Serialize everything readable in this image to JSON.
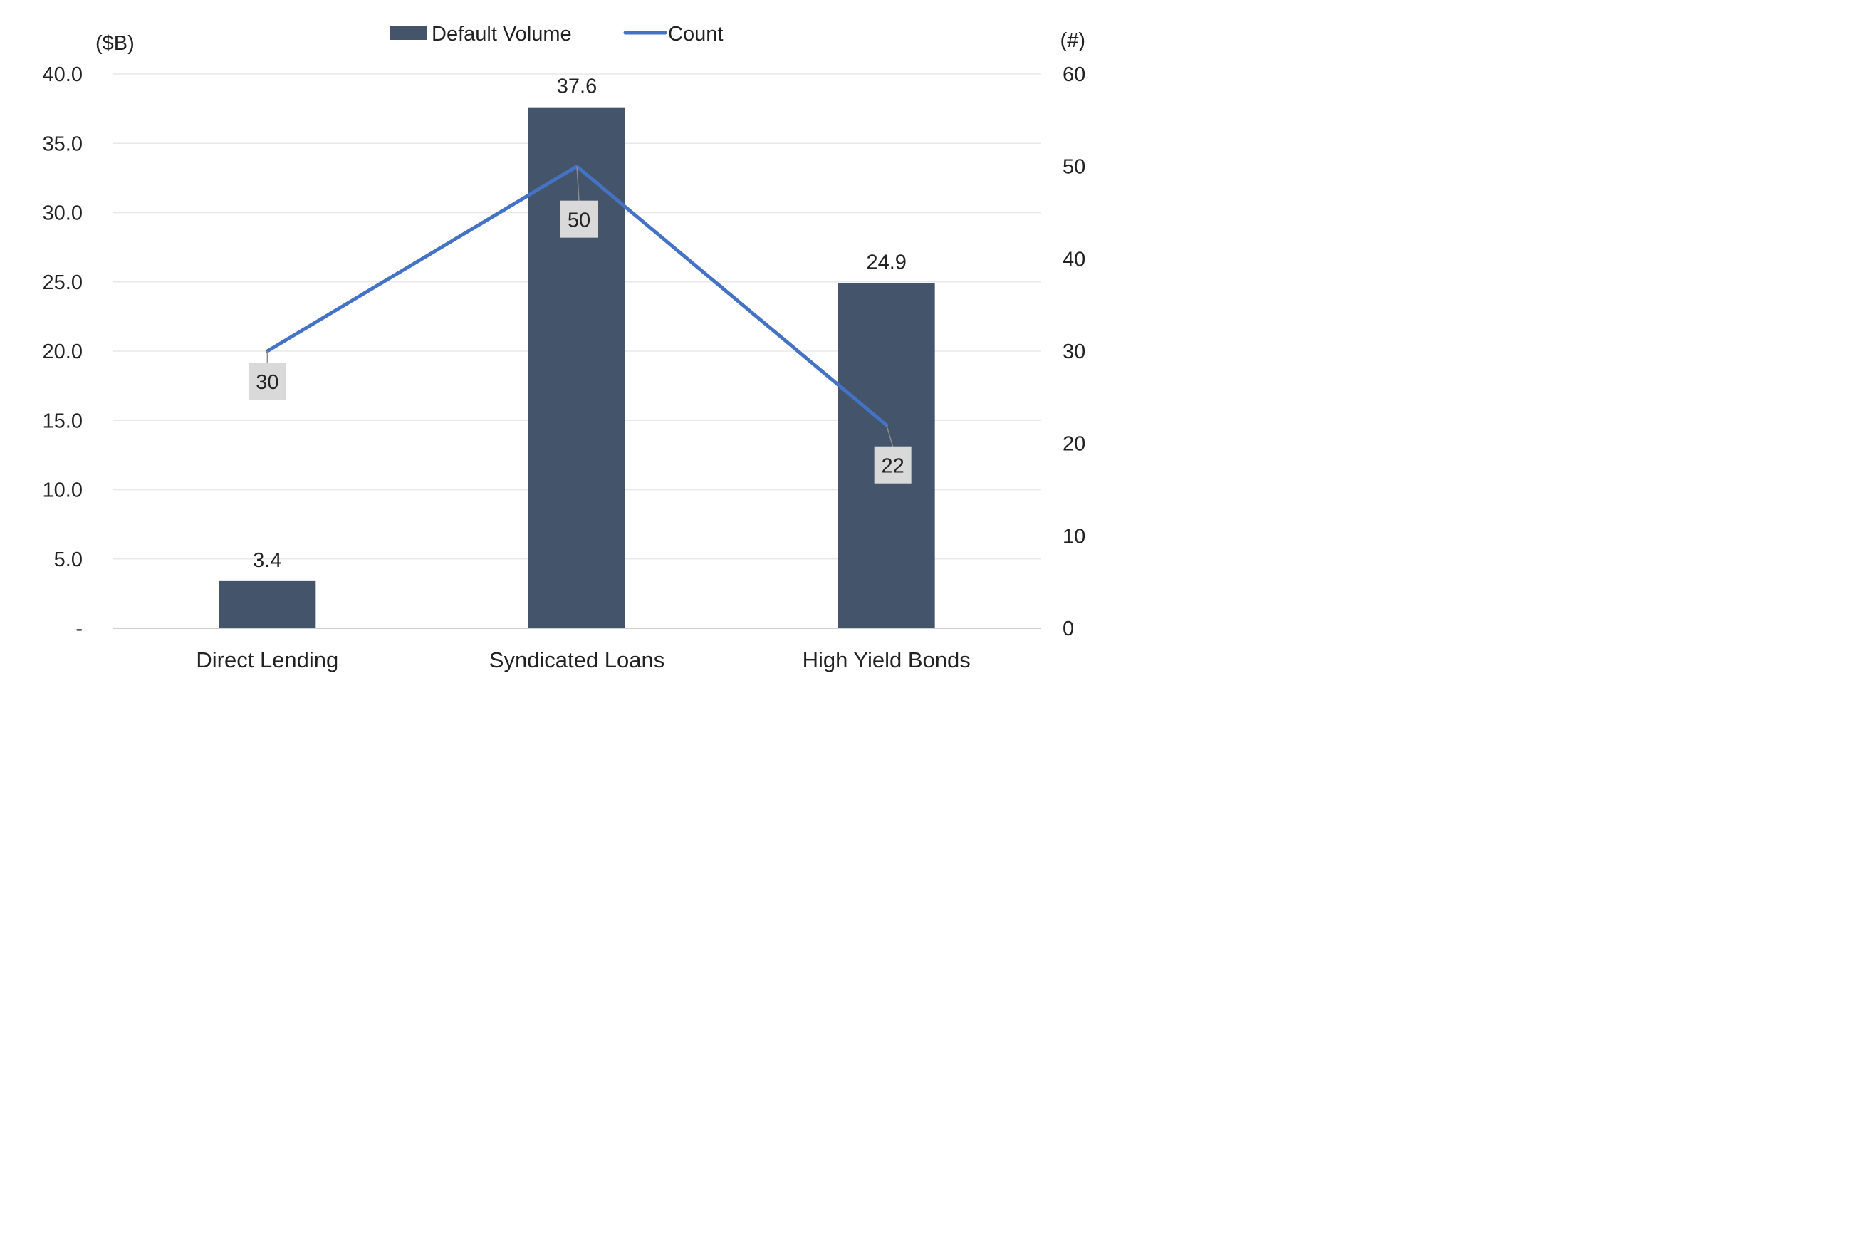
{
  "chart_data": {
    "type": "bar",
    "categories": [
      "Direct Lending",
      "Syndicated Loans",
      "High Yield Bonds"
    ],
    "series": [
      {
        "name": "Default Volume",
        "type": "bar",
        "axis": "left",
        "values": [
          3.4,
          37.6,
          24.9
        ],
        "labels": [
          "3.4",
          "37.6",
          "24.9"
        ],
        "color": "#44546a"
      },
      {
        "name": "Count",
        "type": "line",
        "axis": "right",
        "values": [
          30,
          50,
          22
        ],
        "labels": [
          "30",
          "50",
          "22"
        ],
        "color": "#4472c4"
      }
    ],
    "y_left": {
      "unit_label": "($B)",
      "range": [
        0,
        40
      ],
      "ticks": [
        0,
        5,
        10,
        15,
        20,
        25,
        30,
        35,
        40
      ],
      "tick_labels": [
        "-",
        "5.0",
        "10.0",
        "15.0",
        "20.0",
        "25.0",
        "30.0",
        "35.0",
        "40.0"
      ]
    },
    "y_right": {
      "unit_label": "(#)",
      "range": [
        0,
        60
      ],
      "ticks": [
        0,
        10,
        20,
        30,
        40,
        50,
        60
      ],
      "tick_labels": [
        "0",
        "10",
        "20",
        "30",
        "40",
        "50",
        "60"
      ]
    },
    "grid": true,
    "legend_position": "top-center",
    "colors": {
      "bar": "#44546a",
      "line": "#4472c4",
      "grid": "#e8e8e8",
      "axis": "#d0d0d0",
      "label_box": "#d9d9d9",
      "text": "#222222"
    }
  }
}
